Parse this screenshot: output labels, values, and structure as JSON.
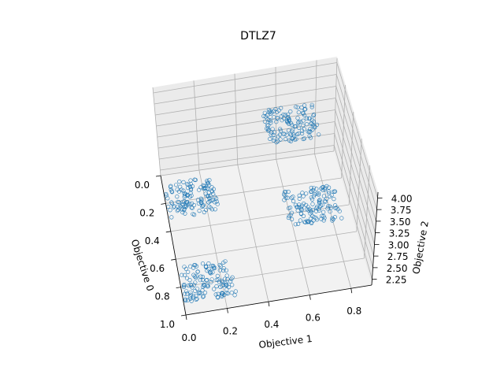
{
  "chart_data": {
    "type": "scatter3d",
    "title": "DTLZ7",
    "xlabel": "Objective 0",
    "ylabel": "Objective 1",
    "zlabel": "Objective 2",
    "x_ticks": [
      "0.0",
      "0.2",
      "0.4",
      "0.6",
      "0.8",
      "1.0"
    ],
    "y_ticks": [
      "0.0",
      "0.2",
      "0.4",
      "0.6",
      "0.8"
    ],
    "z_ticks": [
      "2.25",
      "2.50",
      "2.75",
      "3.00",
      "3.25",
      "3.50",
      "3.75",
      "4.00"
    ],
    "xlim": [
      0,
      1.0
    ],
    "ylim": [
      0,
      0.9
    ],
    "zlim": [
      2.2,
      4.1
    ],
    "grid": true,
    "series": [
      {
        "color": "#1f77b4",
        "marker": "open-circle",
        "clusters": [
          {
            "x": [
              0.0,
              0.25
            ],
            "y": [
              0.0,
              0.25
            ]
          },
          {
            "x": [
              0.0,
              0.25
            ],
            "y": [
              0.6,
              0.86
            ]
          },
          {
            "x": [
              0.6,
              0.86
            ],
            "y": [
              0.0,
              0.25
            ]
          },
          {
            "x": [
              0.6,
              0.86
            ],
            "y": [
              0.6,
              0.86
            ]
          }
        ]
      }
    ]
  }
}
